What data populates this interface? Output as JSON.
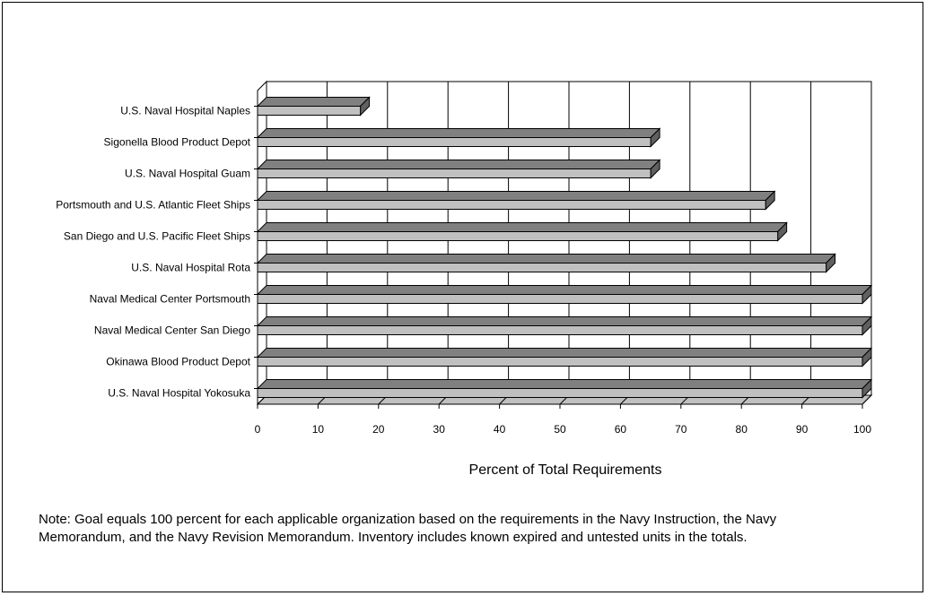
{
  "chart_data": {
    "type": "bar",
    "orientation": "horizontal",
    "style": "3d",
    "title": "",
    "xlabel": "Percent of Total Requirements",
    "ylabel": "",
    "xlim": [
      0,
      100
    ],
    "ticks": [
      "0",
      "10",
      "20",
      "30",
      "40",
      "50",
      "60",
      "70",
      "80",
      "90",
      "100"
    ],
    "grid": true,
    "categories": [
      "U.S. Naval Hospital Naples",
      "Sigonella Blood Product Depot",
      "U.S. Naval Hospital Guam",
      "Portsmouth and U.S. Atlantic Fleet Ships",
      "San Diego and U.S. Pacific Fleet Ships",
      "U.S. Naval Hospital Rota",
      "Naval Medical Center Portsmouth",
      "Naval Medical Center San Diego",
      "Okinawa Blood Product Depot",
      "U.S. Naval Hospital Yokosuka"
    ],
    "values": [
      17,
      65,
      65,
      84,
      86,
      94,
      100,
      100,
      100,
      100
    ],
    "colors": {
      "bar_front": "#c0c0c0",
      "bar_top": "#808080",
      "bar_side": "#606060",
      "wall": "#ffffff",
      "floor": "#c0c0c0",
      "grid": "#000000"
    }
  },
  "note": "Note: Goal equals 100 percent for each applicable organization based on the requirements in the Navy Instruction, the Navy Memorandum, and the Navy Revision Memorandum.  Inventory includes known expired and untested units in the totals."
}
